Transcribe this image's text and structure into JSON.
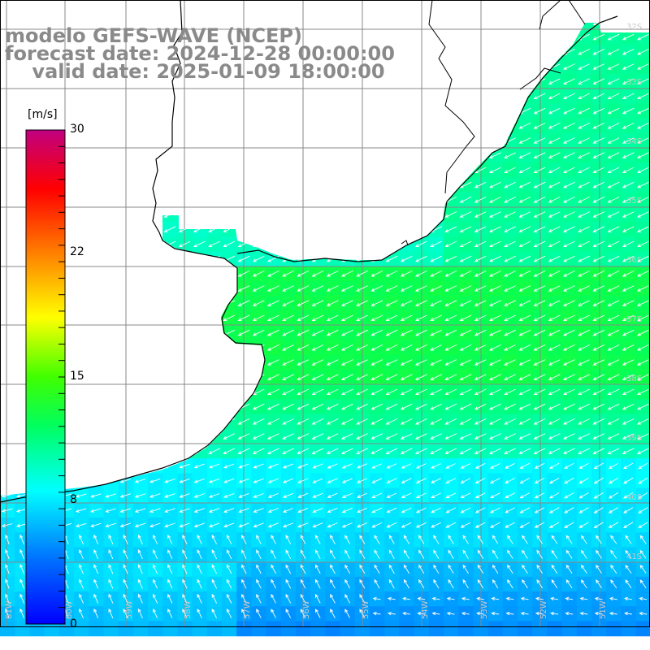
{
  "header": {
    "line1": "modelo GEFS-WAVE (NCEP)",
    "line2": "forecast date: 2024-12-28 00:00:00",
    "line3": "    valid date: 2025-01-09 18:00:00"
  },
  "colorbar": {
    "unit": "[m/s]",
    "tick_labels": [
      "30",
      "22",
      "15",
      "8",
      "0"
    ],
    "range": [
      0,
      30
    ],
    "colors": [
      "#0000ff",
      "#0080ff",
      "#00ffff",
      "#00ff00",
      "#ffff00",
      "#ff8000",
      "#ff0000",
      "#c00080"
    ]
  },
  "map": {
    "longitude_labels": [
      "61W",
      "60W",
      "59W",
      "58W",
      "57W",
      "56W",
      "55W",
      "54W",
      "53W",
      "52W",
      "51W"
    ],
    "latitude_labels": [
      "32S",
      "33S",
      "34S",
      "35S",
      "36S",
      "37S",
      "38S",
      "39S",
      "40S",
      "41S"
    ],
    "variable": "wind speed and direction",
    "land_color": "#ffffff",
    "coast_color": "#000000",
    "grid_color": "#888888"
  }
}
